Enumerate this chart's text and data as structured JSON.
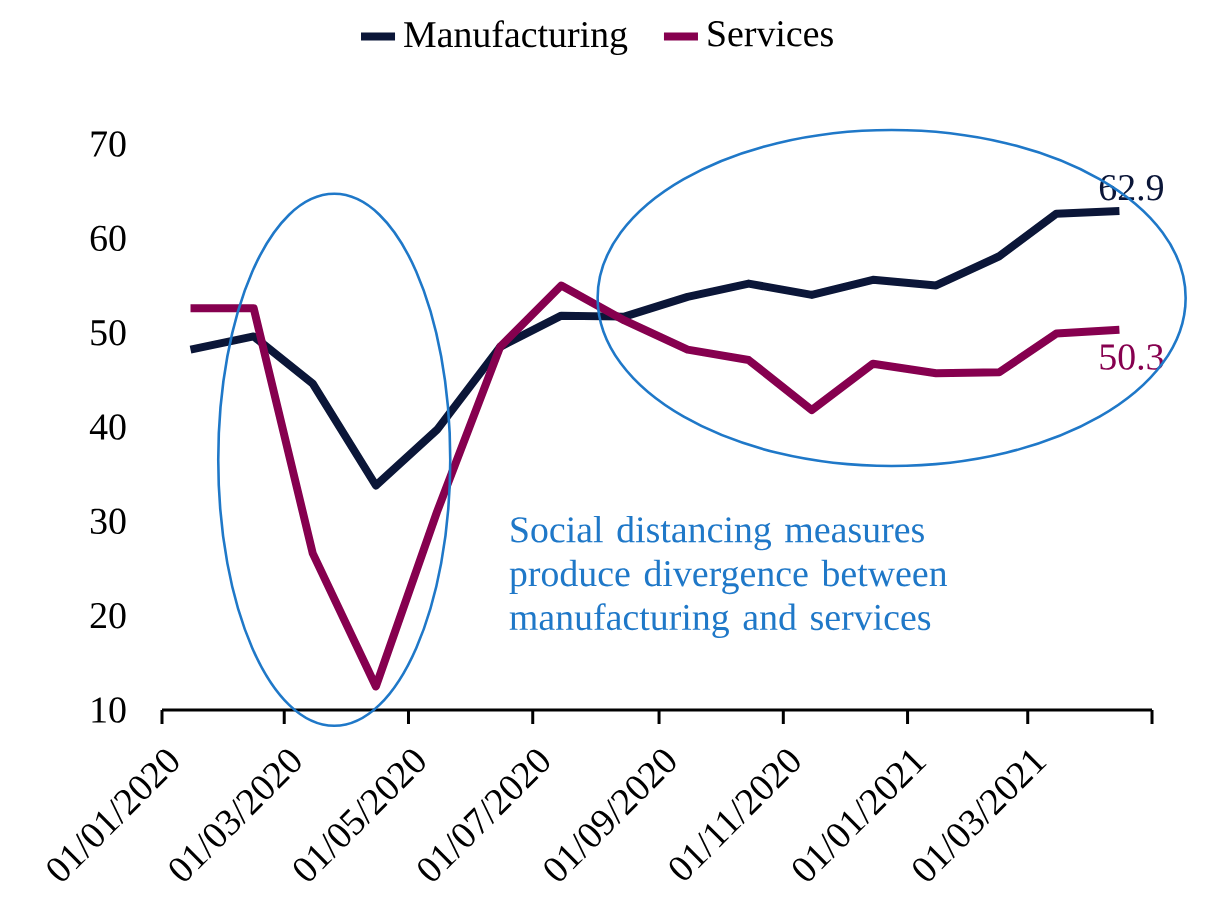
{
  "chart_data": {
    "type": "line",
    "x": [
      "2020-01-15",
      "2020-02-15",
      "2020-03-15",
      "2020-04-15",
      "2020-05-15",
      "2020-06-15",
      "2020-07-15",
      "2020-08-15",
      "2020-09-15",
      "2020-10-15",
      "2020-11-15",
      "2020-12-15",
      "2021-01-15",
      "2021-02-15",
      "2021-03-15",
      "2021-04-15"
    ],
    "series": [
      {
        "name": "Manufacturing",
        "color": "#0b1638",
        "values": [
          48.2,
          49.6,
          44.6,
          33.8,
          39.7,
          48.5,
          51.8,
          51.7,
          53.8,
          55.2,
          54.0,
          55.6,
          55.0,
          58.1,
          62.6,
          62.9
        ],
        "value_labels": [
          null,
          null,
          null,
          null,
          null,
          null,
          null,
          null,
          null,
          null,
          null,
          null,
          null,
          null,
          null,
          "62.9"
        ]
      },
      {
        "name": "Services",
        "color": "#86004f",
        "values": [
          52.6,
          52.6,
          26.6,
          12.5,
          31,
          48.5,
          55.0,
          51.3,
          48.2,
          47.1,
          41.8,
          46.7,
          45.7,
          45.8,
          49.9,
          50.3
        ],
        "value_labels": [
          null,
          null,
          null,
          null,
          null,
          null,
          null,
          null,
          null,
          null,
          null,
          null,
          null,
          null,
          null,
          "50.3"
        ]
      }
    ],
    "xlim": [
      "2020-01-01",
      "2021-05-01"
    ],
    "xticks": [
      {
        "value": "2020-01-01",
        "label": "01/01/2020"
      },
      {
        "value": "2020-03-01",
        "label": "01/03/2020"
      },
      {
        "value": "2020-05-01",
        "label": "01/05/2020"
      },
      {
        "value": "2020-07-01",
        "label": "01/07/2020"
      },
      {
        "value": "2020-09-01",
        "label": "01/09/2020"
      },
      {
        "value": "2020-11-01",
        "label": "01/11/2020"
      },
      {
        "value": "2021-01-01",
        "label": "01/01/2021"
      },
      {
        "value": "2021-03-01",
        "label": "01/03/2021"
      },
      {
        "value": "2021-05-01",
        "label": null
      }
    ],
    "ylim": [
      10,
      70
    ],
    "yticks": [
      10,
      20,
      30,
      40,
      50,
      60,
      70
    ],
    "annotations": [
      "Social distancing measures produce divergence between manufacturing and services"
    ],
    "legend": "top",
    "grid": false,
    "line_style": "solid",
    "marker": "none"
  }
}
